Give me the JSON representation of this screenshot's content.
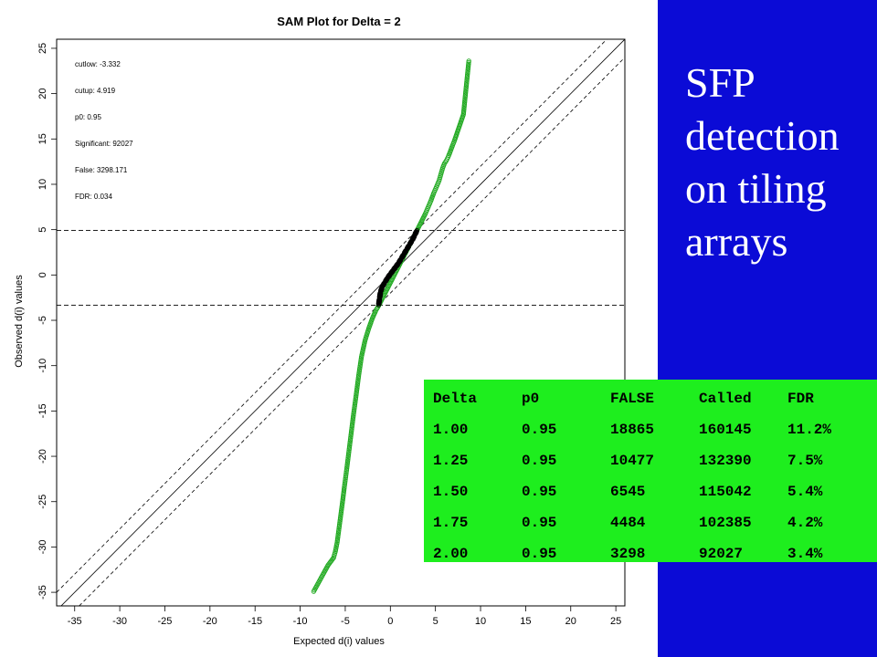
{
  "slide": {
    "title_lines": [
      "SFP",
      "detection",
      "on tiling",
      "arrays"
    ],
    "panel_color": "#0b0bd6",
    "table_bg": "#1eee1e"
  },
  "summary_table": {
    "headers": [
      "Delta",
      "p0",
      "FALSE",
      "Called",
      "FDR"
    ],
    "rows": [
      [
        "1.00",
        "0.95",
        "18865",
        "160145",
        "11.2%"
      ],
      [
        "1.25",
        "0.95",
        "10477",
        "132390",
        "7.5%"
      ],
      [
        "1.50",
        "0.95",
        "6545",
        "115042",
        "5.4%"
      ],
      [
        "1.75",
        "0.95",
        "4484",
        "102385",
        "4.2%"
      ],
      [
        "2.00",
        "0.95",
        "3298",
        "92027",
        "3.4%"
      ]
    ]
  },
  "chart_data": {
    "type": "scatter",
    "title": "SAM Plot for Delta = 2",
    "xlabel": "Expected d(i) values",
    "ylabel": "Observed d(i) values",
    "xlim": [
      -37,
      26
    ],
    "ylim": [
      -36.5,
      26
    ],
    "xticks": [
      -35,
      -30,
      -25,
      -20,
      -15,
      -10,
      -5,
      0,
      5,
      10,
      15,
      20,
      25
    ],
    "yticks": [
      -35,
      -30,
      -25,
      -20,
      -15,
      -10,
      -5,
      0,
      5,
      10,
      15,
      20,
      25
    ],
    "grid": false,
    "annotations": [
      "cutlow: -3.332",
      "cutup: 4.919",
      "p0: 0.95",
      "Significant: 92027",
      "False: 3298.171",
      "FDR: 0.034"
    ],
    "cutlow": -3.332,
    "cutup": 4.919,
    "delta": 2,
    "colors": {
      "significant": "#22aa22",
      "nonsignificant": "#000000"
    },
    "series": [
      {
        "color": "#22aa22",
        "points": [
          [
            -8.5,
            -34.9
          ],
          [
            -8.0,
            -34.0
          ],
          [
            -7.4,
            -32.9
          ],
          [
            -6.9,
            -32.0
          ],
          [
            -6.6,
            -31.6
          ],
          [
            -6.3,
            -31.2
          ],
          [
            -6.1,
            -30.5
          ],
          [
            -5.9,
            -29.5
          ],
          [
            -5.7,
            -28.0
          ],
          [
            -5.5,
            -26.5
          ],
          [
            -5.3,
            -25.0
          ],
          [
            -5.1,
            -23.4
          ],
          [
            -4.85,
            -21.5
          ],
          [
            -4.6,
            -19.5
          ],
          [
            -4.35,
            -17.5
          ],
          [
            -4.1,
            -15.5
          ],
          [
            -3.8,
            -13.3
          ],
          [
            -3.5,
            -11.0
          ],
          [
            -3.2,
            -9.0
          ],
          [
            -2.8,
            -7.2
          ],
          [
            -2.4,
            -5.9
          ],
          [
            -2.0,
            -4.8
          ],
          [
            -1.6,
            -3.9
          ],
          [
            -1.3,
            -3.4
          ],
          [
            3.0,
            5.0
          ],
          [
            3.3,
            5.6
          ],
          [
            3.6,
            6.2
          ],
          [
            3.9,
            6.8
          ],
          [
            4.2,
            7.5
          ],
          [
            4.5,
            8.2
          ],
          [
            4.8,
            9.0
          ],
          [
            5.1,
            9.7
          ],
          [
            5.4,
            10.4
          ],
          [
            5.6,
            11.1
          ],
          [
            5.8,
            11.8
          ],
          [
            6.0,
            12.3
          ],
          [
            6.2,
            12.6
          ],
          [
            6.4,
            13.0
          ],
          [
            6.6,
            13.5
          ],
          [
            6.9,
            14.3
          ],
          [
            7.1,
            14.8
          ],
          [
            8.1,
            17.7
          ],
          [
            8.7,
            23.6
          ]
        ]
      },
      {
        "color": "#000000",
        "points": [
          [
            -1.3,
            -3.3
          ],
          [
            -1.2,
            -2.6
          ],
          [
            -1.1,
            -1.9
          ],
          [
            -0.9,
            -1.3
          ],
          [
            -0.6,
            -0.8
          ],
          [
            -0.3,
            -0.3
          ],
          [
            0.0,
            0.1
          ],
          [
            0.3,
            0.5
          ],
          [
            0.6,
            0.9
          ],
          [
            0.9,
            1.3
          ],
          [
            1.2,
            1.8
          ],
          [
            1.5,
            2.3
          ],
          [
            1.8,
            2.8
          ],
          [
            2.1,
            3.3
          ],
          [
            2.4,
            3.8
          ],
          [
            2.7,
            4.4
          ],
          [
            2.95,
            4.9
          ]
        ]
      }
    ]
  }
}
